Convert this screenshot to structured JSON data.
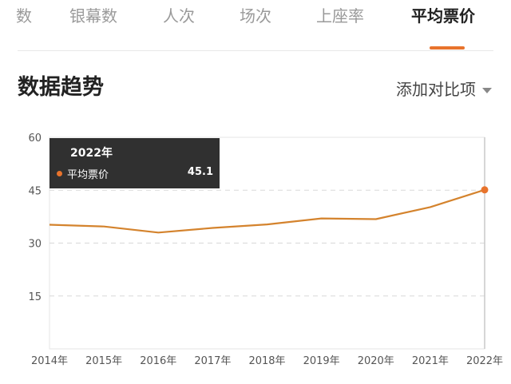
{
  "tabs": [
    {
      "label": "数",
      "active": false
    },
    {
      "label": "银幕数",
      "active": false
    },
    {
      "label": "人次",
      "active": false
    },
    {
      "label": "场次",
      "active": false
    },
    {
      "label": "上座率",
      "active": false
    },
    {
      "label": "平均票价",
      "active": true
    }
  ],
  "section_title": "数据趋势",
  "compare_label": "添加对比项",
  "tooltip": {
    "title": "2022年",
    "series": "平均票价",
    "value": "45.1"
  },
  "colors": {
    "accent": "#e8732c",
    "line": "#d4832d"
  },
  "chart_data": {
    "type": "line",
    "x": [
      "2014年",
      "2015年",
      "2016年",
      "2017年",
      "2018年",
      "2019年",
      "2020年",
      "2021年",
      "2022年"
    ],
    "series": [
      {
        "name": "平均票价",
        "values": [
          35.2,
          34.7,
          33.0,
          34.3,
          35.3,
          37.0,
          36.8,
          40.2,
          45.1
        ]
      }
    ],
    "yticks": [
      15,
      30,
      45,
      60
    ],
    "ylim": [
      0,
      60
    ],
    "grid": true,
    "highlighted_index": 8
  }
}
